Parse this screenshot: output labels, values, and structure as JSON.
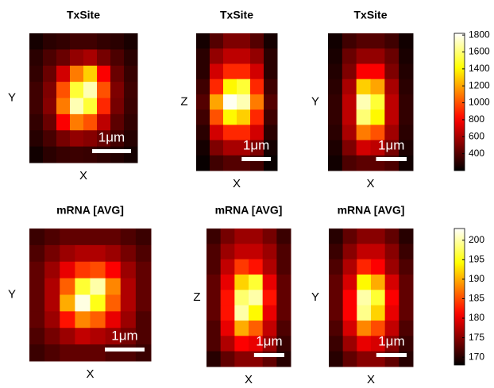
{
  "panels": [
    {
      "title": "TxSite",
      "x_label": "X",
      "y_label": "Y",
      "scale_bar": "1μm",
      "colorbar": 0,
      "values": [
        [
          250,
          300,
          320,
          350,
          350,
          320,
          300,
          260
        ],
        [
          300,
          380,
          450,
          550,
          600,
          480,
          380,
          300
        ],
        [
          320,
          450,
          700,
          1100,
          1300,
          800,
          450,
          330
        ],
        [
          350,
          500,
          1000,
          1500,
          1700,
          1000,
          500,
          350
        ],
        [
          350,
          520,
          1100,
          1700,
          1500,
          900,
          480,
          340
        ],
        [
          320,
          450,
          800,
          1100,
          1000,
          650,
          420,
          320
        ],
        [
          290,
          370,
          480,
          550,
          520,
          450,
          360,
          290
        ],
        [
          240,
          300,
          330,
          340,
          330,
          310,
          280,
          250
        ]
      ]
    },
    {
      "title": "TxSite",
      "x_label": "X",
      "y_label": "Z",
      "scale_bar": "1μm",
      "colorbar": 0,
      "values": [
        [
          250,
          400,
          500,
          500,
          400,
          250
        ],
        [
          300,
          550,
          650,
          650,
          550,
          300
        ],
        [
          300,
          700,
          900,
          900,
          700,
          300
        ],
        [
          350,
          900,
          1400,
          1500,
          900,
          350
        ],
        [
          400,
          1200,
          1800,
          1700,
          1100,
          400
        ],
        [
          350,
          1000,
          1400,
          1300,
          900,
          350
        ],
        [
          300,
          700,
          900,
          900,
          700,
          300
        ],
        [
          250,
          500,
          600,
          600,
          500,
          250
        ],
        [
          220,
          350,
          400,
          400,
          350,
          220
        ]
      ]
    },
    {
      "title": "TxSite",
      "x_label": "X",
      "y_label": "Y",
      "scale_bar": "1μm",
      "colorbar": 0,
      "values": [
        [
          240,
          350,
          400,
          400,
          350,
          240
        ],
        [
          260,
          450,
          550,
          550,
          450,
          260
        ],
        [
          280,
          500,
          800,
          800,
          500,
          280
        ],
        [
          300,
          600,
          1300,
          1200,
          600,
          300
        ],
        [
          320,
          650,
          1700,
          1500,
          650,
          320
        ],
        [
          320,
          650,
          1600,
          1400,
          650,
          320
        ],
        [
          300,
          600,
          1100,
          1000,
          580,
          300
        ],
        [
          270,
          500,
          700,
          650,
          480,
          270
        ],
        [
          240,
          380,
          420,
          420,
          380,
          240
        ]
      ]
    },
    {
      "title": "mRNA [AVG]",
      "x_label": "X",
      "y_label": "Y",
      "scale_bar": "1μm",
      "colorbar": 1,
      "values": [
        [
          171,
          172,
          173,
          173,
          173,
          173,
          172,
          171
        ],
        [
          172,
          174,
          176,
          177,
          177,
          176,
          174,
          172
        ],
        [
          173,
          176,
          180,
          184,
          185,
          181,
          176,
          173
        ],
        [
          173,
          177,
          186,
          196,
          200,
          188,
          177,
          173
        ],
        [
          173,
          177,
          190,
          202,
          195,
          186,
          177,
          173
        ],
        [
          173,
          176,
          182,
          188,
          186,
          180,
          176,
          172
        ],
        [
          172,
          174,
          176,
          178,
          177,
          176,
          174,
          172
        ],
        [
          171,
          172,
          173,
          173,
          173,
          172,
          172,
          171
        ]
      ]
    },
    {
      "title": "mRNA [AVG]",
      "x_label": "X",
      "y_label": "Z",
      "scale_bar": "1μm",
      "colorbar": 1,
      "values": [
        [
          171,
          174,
          176,
          176,
          174,
          171
        ],
        [
          172,
          176,
          178,
          178,
          176,
          172
        ],
        [
          172,
          178,
          184,
          182,
          177,
          172
        ],
        [
          173,
          180,
          192,
          196,
          180,
          173
        ],
        [
          173,
          182,
          198,
          200,
          182,
          173
        ],
        [
          173,
          182,
          200,
          194,
          180,
          173
        ],
        [
          172,
          180,
          190,
          186,
          178,
          172
        ],
        [
          172,
          177,
          181,
          180,
          176,
          171
        ],
        [
          170,
          173,
          175,
          175,
          173,
          170
        ]
      ]
    },
    {
      "title": "mRNA [AVG]",
      "x_label": "X",
      "y_label": "Y",
      "scale_bar": "1μm",
      "colorbar": 1,
      "values": [
        [
          170,
          173,
          175,
          175,
          173,
          170
        ],
        [
          171,
          175,
          178,
          178,
          175,
          171
        ],
        [
          172,
          177,
          183,
          181,
          176,
          172
        ],
        [
          173,
          179,
          194,
          190,
          179,
          173
        ],
        [
          173,
          181,
          200,
          196,
          181,
          173
        ],
        [
          173,
          181,
          199,
          192,
          180,
          173
        ],
        [
          172,
          179,
          188,
          185,
          178,
          172
        ],
        [
          171,
          176,
          180,
          179,
          175,
          171
        ],
        [
          170,
          173,
          175,
          175,
          173,
          170
        ]
      ]
    }
  ],
  "colorbars": [
    {
      "clim": [
        200,
        1820
      ],
      "ticks": [
        400,
        600,
        800,
        1000,
        1200,
        1400,
        1600,
        1800
      ]
    },
    {
      "clim": [
        168,
        203
      ],
      "ticks": [
        170,
        175,
        180,
        185,
        190,
        195,
        200
      ]
    }
  ]
}
